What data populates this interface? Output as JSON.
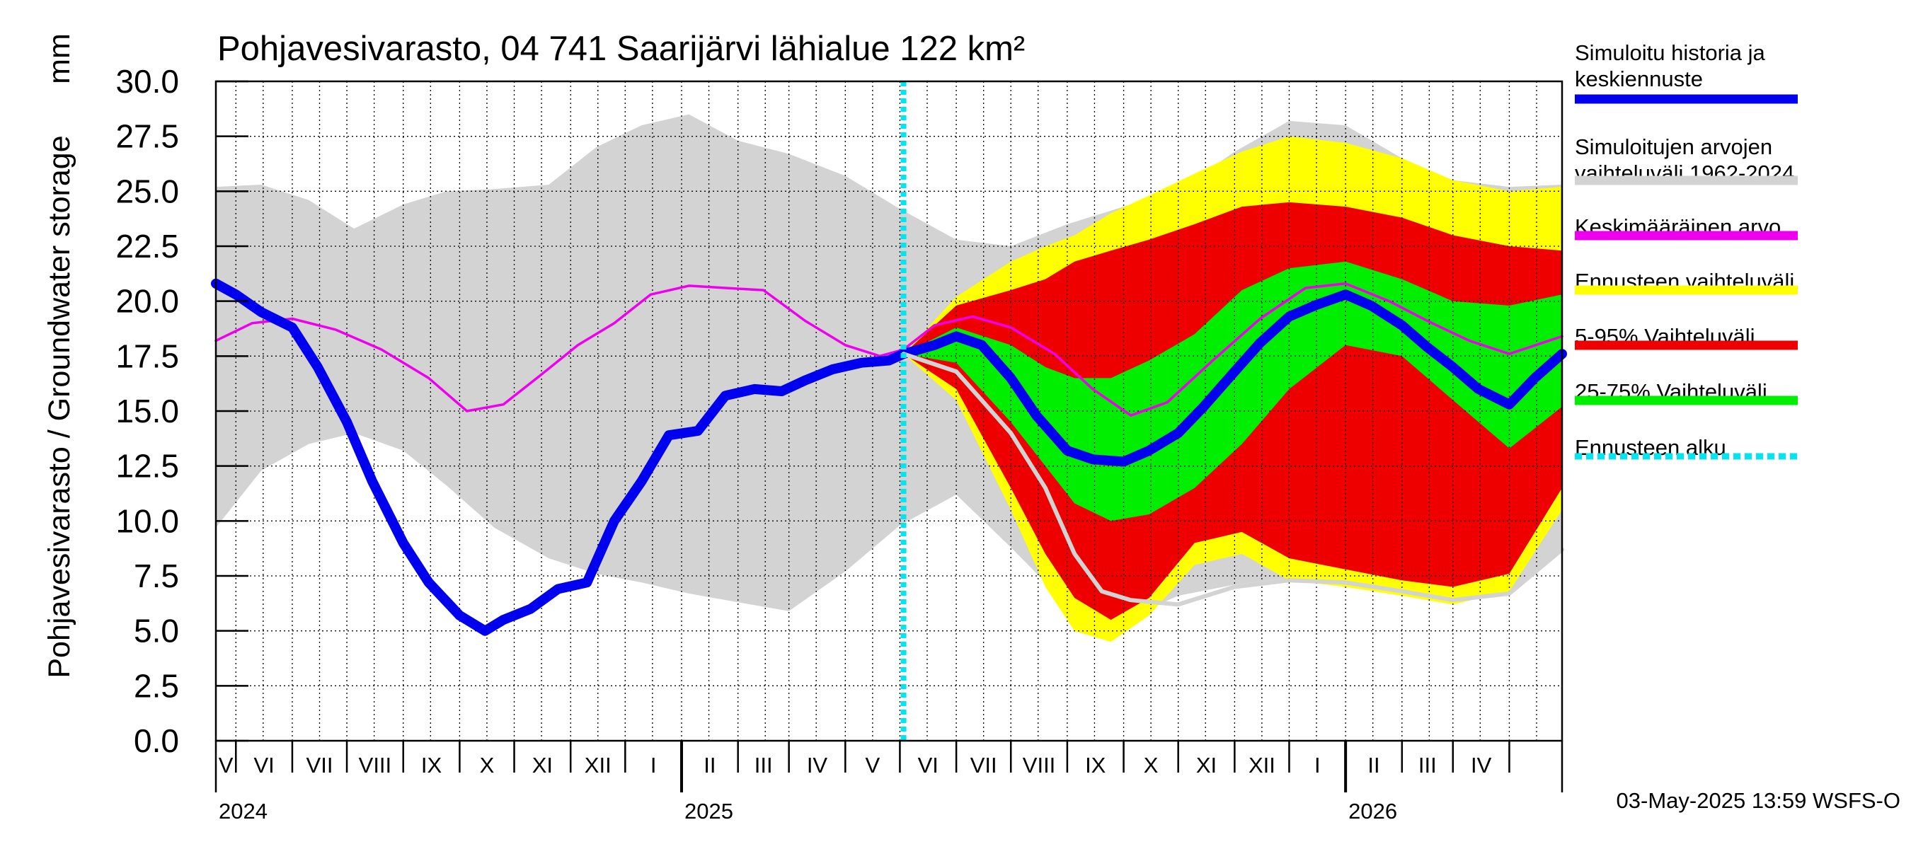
{
  "chart_data": {
    "type": "area",
    "title": "Pohjavesivarasto, 04 741 Saarijärvi lähialue 122 km²",
    "ylabel": "Pohjavesivarasto / Groundwater storage",
    "yunit": "mm",
    "ylim": [
      0,
      30
    ],
    "yticks": [
      "0.0",
      "2.5",
      "5.0",
      "7.5",
      "10.0",
      "12.5",
      "15.0",
      "17.5",
      "20.0",
      "22.5",
      "25.0",
      "27.5",
      "30.0"
    ],
    "xlim": [
      "2024-04-20",
      "2026-04-30"
    ],
    "months": [
      "V",
      "VI",
      "VII",
      "VIII",
      "IX",
      "X",
      "XI",
      "XII",
      "I",
      "II",
      "III",
      "IV",
      "V",
      "VI",
      "VII",
      "VIII",
      "IX",
      "X",
      "XI",
      "XII",
      "I",
      "II",
      "III",
      "IV"
    ],
    "years": [
      "2024",
      "2025",
      "2026"
    ],
    "grid": true,
    "forecast_start": "2025-05-03",
    "footer": "03-May-2025 13:59 WSFS-O",
    "legend": [
      {
        "label": "Simuloitu historia ja keskiennuste",
        "color": "#0000ee"
      },
      {
        "label": "Simuloitujen arvojen vaihteluväli 1962-2024",
        "color": "#d3d3d3"
      },
      {
        "label": "Keskimääräinen arvo",
        "color": "#ee00ee"
      },
      {
        "label": "Ennusteen vaihteluväli",
        "color": "#ffff00"
      },
      {
        "label": "5-95% Vaihteluväli",
        "color": "#ee0000"
      },
      {
        "label": "25-75% Vaihteluväli",
        "color": "#00ee00"
      },
      {
        "label": "Ennusteen alku",
        "color": "#00e5ee"
      }
    ],
    "series": [
      {
        "name": "Simuloitujen arvojen vaihteluväli 1962-2024",
        "kind": "band",
        "color": "#d3d3d3",
        "dates": [
          "2024-04-20",
          "2024-05-15",
          "2024-06-10",
          "2024-07-05",
          "2024-08-01",
          "2024-08-25",
          "2024-09-20",
          "2024-10-20",
          "2024-11-15",
          "2024-12-10",
          "2025-01-05",
          "2025-02-01",
          "2025-03-01",
          "2025-04-01",
          "2025-05-01",
          "2025-06-01",
          "2025-07-01",
          "2025-08-01",
          "2025-09-01",
          "2025-10-01",
          "2025-11-01",
          "2025-12-01",
          "2026-01-01",
          "2026-02-01",
          "2026-03-01",
          "2026-04-01",
          "2026-04-30"
        ],
        "lower": [
          9.7,
          12.3,
          13.5,
          14.0,
          13.2,
          11.6,
          9.7,
          8.3,
          7.6,
          7.2,
          6.7,
          6.3,
          5.9,
          7.7,
          9.8,
          11.2,
          8.8,
          6.2,
          5.5,
          6.6,
          7.1,
          7.4,
          7.2,
          6.8,
          6.4,
          6.7,
          8.7
        ],
        "upper": [
          25.2,
          25.3,
          24.6,
          23.3,
          24.4,
          25.0,
          25.1,
          25.3,
          27.0,
          28.0,
          28.5,
          27.3,
          26.7,
          25.7,
          24.2,
          22.8,
          22.5,
          23.5,
          24.3,
          25.0,
          26.8,
          28.2,
          28.0,
          26.5,
          25.5,
          25.2,
          25.3
        ]
      },
      {
        "name": "Ennusteen vaihteluväli",
        "kind": "band",
        "color": "#ffff00",
        "dates": [
          "2025-05-03",
          "2025-06-01",
          "2025-07-01",
          "2025-07-20",
          "2025-08-05",
          "2025-08-25",
          "2025-09-15",
          "2025-10-10",
          "2025-11-05",
          "2025-12-01",
          "2026-01-01",
          "2026-02-01",
          "2026-03-01",
          "2026-04-01",
          "2026-04-30"
        ],
        "lower": [
          17.6,
          15.5,
          10.5,
          7.0,
          5.0,
          4.5,
          5.7,
          8.0,
          8.5,
          7.3,
          7.0,
          6.6,
          6.2,
          6.8,
          10.5
        ],
        "upper": [
          17.6,
          20.2,
          21.8,
          22.5,
          23.0,
          24.0,
          24.8,
          25.8,
          26.8,
          27.5,
          27.2,
          26.5,
          25.5,
          25.0,
          25.2
        ]
      },
      {
        "name": "5-95% Vaihteluväli",
        "kind": "band",
        "color": "#ee0000",
        "dates": [
          "2025-05-03",
          "2025-06-01",
          "2025-07-01",
          "2025-07-20",
          "2025-08-05",
          "2025-08-25",
          "2025-09-15",
          "2025-10-10",
          "2025-11-05",
          "2025-12-01",
          "2026-01-01",
          "2026-02-01",
          "2026-03-01",
          "2026-04-01",
          "2026-04-30"
        ],
        "lower": [
          17.6,
          16.0,
          11.5,
          8.5,
          6.5,
          5.5,
          6.5,
          9.0,
          9.5,
          8.3,
          7.8,
          7.3,
          7.0,
          7.6,
          11.5
        ],
        "upper": [
          17.6,
          19.8,
          20.5,
          21.0,
          21.8,
          22.3,
          22.8,
          23.5,
          24.3,
          24.5,
          24.3,
          23.8,
          23.0,
          22.5,
          22.3
        ]
      },
      {
        "name": "25-75% Vaihteluväli",
        "kind": "band",
        "color": "#00ee00",
        "dates": [
          "2025-05-03",
          "2025-06-01",
          "2025-07-01",
          "2025-07-20",
          "2025-08-05",
          "2025-08-25",
          "2025-09-15",
          "2025-10-10",
          "2025-11-05",
          "2025-12-01",
          "2026-01-01",
          "2026-02-01",
          "2026-03-01",
          "2026-04-01",
          "2026-04-30"
        ],
        "lower": [
          17.6,
          17.2,
          14.5,
          12.5,
          10.8,
          10.0,
          10.3,
          11.5,
          13.5,
          16.0,
          18.0,
          17.5,
          15.5,
          13.3,
          15.2
        ],
        "upper": [
          17.6,
          18.8,
          18.0,
          17.0,
          16.5,
          16.5,
          17.3,
          18.5,
          20.5,
          21.5,
          21.8,
          21.0,
          20.0,
          19.8,
          20.3
        ]
      },
      {
        "name": "Keskimääräinen arvo",
        "kind": "line",
        "color": "#ee00ee",
        "dates": [
          "2024-04-20",
          "2024-05-10",
          "2024-06-01",
          "2024-06-25",
          "2024-07-20",
          "2024-08-15",
          "2024-09-05",
          "2024-09-25",
          "2024-10-15",
          "2024-11-05",
          "2024-11-25",
          "2024-12-15",
          "2025-01-05",
          "2025-01-25",
          "2025-02-15",
          "2025-03-10",
          "2025-04-01",
          "2025-04-20",
          "2025-05-03",
          "2025-05-20",
          "2025-06-10",
          "2025-07-01",
          "2025-07-25",
          "2025-08-15",
          "2025-09-05",
          "2025-09-25",
          "2025-10-20",
          "2025-11-15",
          "2025-12-10",
          "2026-01-01",
          "2026-01-25",
          "2026-02-15",
          "2026-03-10",
          "2026-04-01",
          "2026-04-30"
        ],
        "values": [
          18.2,
          19.0,
          19.2,
          18.7,
          17.8,
          16.5,
          15.0,
          15.3,
          16.6,
          18.0,
          19.0,
          20.3,
          20.7,
          20.6,
          20.5,
          19.1,
          18.0,
          17.5,
          17.8,
          18.9,
          19.3,
          18.8,
          17.6,
          16.0,
          14.8,
          15.4,
          17.3,
          19.2,
          20.6,
          20.8,
          20.0,
          19.1,
          18.2,
          17.6,
          18.4
        ]
      },
      {
        "name": "Simuloitu historia ja keskiennuste",
        "kind": "line",
        "color": "#0000ee",
        "dates": [
          "2024-04-20",
          "2024-05-01",
          "2024-05-15",
          "2024-06-01",
          "2024-06-15",
          "2024-07-01",
          "2024-07-15",
          "2024-08-01",
          "2024-08-15",
          "2024-09-01",
          "2024-09-15",
          "2024-09-25",
          "2024-10-10",
          "2024-10-25",
          "2024-11-10",
          "2024-11-25",
          "2024-12-10",
          "2024-12-25",
          "2025-01-10",
          "2025-01-25",
          "2025-02-10",
          "2025-02-25",
          "2025-03-10",
          "2025-03-25",
          "2025-04-10",
          "2025-04-25",
          "2025-05-03",
          "2025-05-20",
          "2025-06-01",
          "2025-06-15",
          "2025-07-01",
          "2025-07-15",
          "2025-08-01",
          "2025-08-15",
          "2025-09-01",
          "2025-09-15",
          "2025-10-01",
          "2025-10-15",
          "2025-11-01",
          "2025-11-15",
          "2025-12-01",
          "2025-12-15",
          "2026-01-01",
          "2026-01-15",
          "2026-02-01",
          "2026-02-15",
          "2026-03-01",
          "2026-03-15",
          "2026-04-01",
          "2026-04-15",
          "2026-04-30"
        ],
        "values": [
          20.8,
          20.3,
          19.5,
          18.8,
          17.0,
          14.5,
          11.8,
          9.0,
          7.2,
          5.7,
          5.0,
          5.5,
          6.0,
          6.9,
          7.2,
          10.0,
          11.8,
          13.9,
          14.1,
          15.7,
          16.0,
          15.9,
          16.4,
          16.9,
          17.2,
          17.3,
          17.6,
          18.0,
          18.4,
          18.0,
          16.5,
          14.8,
          13.2,
          12.8,
          12.7,
          13.2,
          14.0,
          15.2,
          16.8,
          18.1,
          19.3,
          19.8,
          20.3,
          19.8,
          18.9,
          17.9,
          17.0,
          16.0,
          15.3,
          16.5,
          17.6
        ]
      },
      {
        "name": "Simuloitujen arvojen vaihteluväli 1962-2024 (alaraja ennusteen aikana)",
        "kind": "line",
        "color": "#d3d3d3",
        "dates": [
          "2025-05-03",
          "2025-06-01",
          "2025-07-01",
          "2025-07-20",
          "2025-08-05",
          "2025-08-20",
          "2025-09-05",
          "2025-10-01",
          "2025-11-01",
          "2025-12-01",
          "2026-01-01",
          "2026-02-01",
          "2026-03-01",
          "2026-04-01",
          "2026-04-30"
        ],
        "values": [
          17.6,
          16.8,
          14.0,
          11.5,
          8.5,
          6.8,
          6.4,
          6.2,
          7.0,
          7.3,
          7.2,
          6.8,
          6.4,
          6.7,
          8.7
        ]
      }
    ]
  }
}
